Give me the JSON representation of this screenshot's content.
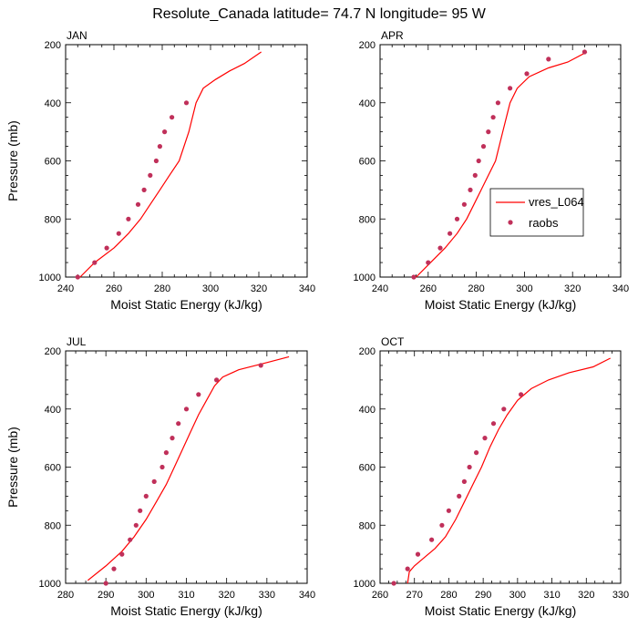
{
  "title": "Resolute_Canada  latitude= 74.7 N longitude= 95 W",
  "colors": {
    "model_line": "#ff0000",
    "obs_marker": "#c0305a",
    "axis": "#000000"
  },
  "legend": {
    "placement": "right of panel APR",
    "model_label": "vres_L064",
    "obs_label": "raobs"
  },
  "chart_data": [
    {
      "type": "line",
      "panel": "JAN",
      "title": "JAN",
      "xlabel": "Moist Static Energy (kJ/kg)",
      "ylabel": "Pressure (mb)",
      "xlim": [
        240,
        340
      ],
      "ylim": [
        1000,
        200
      ],
      "xticks": [
        "240",
        "260",
        "280",
        "300",
        "320",
        "340"
      ],
      "yticks": [
        "200",
        "400",
        "600",
        "800",
        "1000"
      ],
      "series": [
        {
          "name": "vres_L064",
          "kind": "line",
          "x": [
            246,
            252,
            260,
            266,
            271,
            275,
            279,
            283,
            287,
            291,
            294,
            297,
            302,
            308,
            314,
            321
          ],
          "y": [
            1000,
            950,
            900,
            850,
            800,
            750,
            700,
            650,
            600,
            500,
            400,
            350,
            320,
            290,
            265,
            225
          ]
        },
        {
          "name": "raobs",
          "kind": "scatter",
          "x": [
            245,
            252,
            257,
            262,
            266,
            270,
            272.5,
            275,
            277.5,
            279,
            281,
            284,
            290
          ],
          "y": [
            1000,
            950,
            900,
            850,
            800,
            750,
            700,
            650,
            600,
            550,
            500,
            450,
            400
          ]
        }
      ]
    },
    {
      "type": "line",
      "panel": "APR",
      "title": "APR",
      "xlabel": "Moist Static Energy (kJ/kg)",
      "ylabel": "",
      "xlim": [
        240,
        340
      ],
      "ylim": [
        1000,
        200
      ],
      "xticks": [
        "240",
        "260",
        "280",
        "300",
        "320",
        "340"
      ],
      "yticks": [
        "200",
        "400",
        "600",
        "800",
        "1000"
      ],
      "series": [
        {
          "name": "vres_L064",
          "kind": "line",
          "x": [
            255,
            261,
            267,
            272,
            276,
            279,
            282,
            285,
            288,
            291,
            294,
            297,
            302,
            310,
            318,
            326
          ],
          "y": [
            1000,
            950,
            900,
            850,
            800,
            750,
            700,
            650,
            600,
            500,
            400,
            350,
            310,
            280,
            260,
            225
          ]
        },
        {
          "name": "raobs",
          "kind": "scatter",
          "x": [
            254,
            260,
            265,
            269,
            272,
            275,
            277.5,
            279.5,
            281,
            283,
            285,
            287,
            289,
            294,
            301,
            310,
            325
          ],
          "y": [
            1000,
            950,
            900,
            850,
            800,
            750,
            700,
            650,
            600,
            550,
            500,
            450,
            400,
            350,
            300,
            250,
            225
          ]
        }
      ]
    },
    {
      "type": "line",
      "panel": "JUL",
      "title": "JUL",
      "xlabel": "Moist Static Energy (kJ/kg)",
      "ylabel": "Pressure (mb)",
      "xlim": [
        280,
        340
      ],
      "ylim": [
        1000,
        200
      ],
      "xticks": [
        "280",
        "290",
        "300",
        "310",
        "320",
        "330",
        "340"
      ],
      "yticks": [
        "200",
        "400",
        "600",
        "800",
        "1000"
      ],
      "series": [
        {
          "name": "vres_L064",
          "kind": "line",
          "x": [
            285.5,
            290,
            294,
            297,
            300,
            302.5,
            305,
            307,
            309,
            311,
            313,
            315,
            317,
            319,
            323,
            330,
            335.5
          ],
          "y": [
            990,
            940,
            890,
            840,
            780,
            720,
            660,
            600,
            540,
            480,
            420,
            370,
            320,
            290,
            265,
            240,
            220
          ]
        },
        {
          "name": "raobs",
          "kind": "scatter",
          "x": [
            290,
            292,
            294,
            296,
            297.5,
            298.5,
            300,
            302,
            304,
            305,
            306.5,
            308,
            310,
            313,
            317.5,
            328.5
          ],
          "y": [
            1000,
            950,
            900,
            850,
            800,
            750,
            700,
            650,
            600,
            550,
            500,
            450,
            400,
            350,
            300,
            250
          ]
        }
      ]
    },
    {
      "type": "line",
      "panel": "OCT",
      "title": "OCT",
      "xlabel": "Moist Static Energy (kJ/kg)",
      "ylabel": "",
      "xlim": [
        260,
        330
      ],
      "ylim": [
        1000,
        200
      ],
      "xticks": [
        "260",
        "270",
        "280",
        "290",
        "300",
        "310",
        "320",
        "330"
      ],
      "yticks": [
        "200",
        "400",
        "600",
        "800",
        "1000"
      ],
      "series": [
        {
          "name": "vres_L064",
          "kind": "line",
          "x": [
            268,
            268.5,
            270,
            273,
            276,
            279,
            282,
            284.5,
            287,
            289.5,
            292,
            294.5,
            297,
            300,
            304,
            309,
            315,
            322,
            327
          ],
          "y": [
            1000,
            960,
            940,
            910,
            880,
            840,
            780,
            720,
            660,
            600,
            530,
            470,
            420,
            370,
            330,
            300,
            275,
            255,
            225
          ]
        },
        {
          "name": "raobs",
          "kind": "scatter",
          "x": [
            264,
            268,
            271,
            275,
            278,
            280,
            283,
            284.5,
            286,
            288,
            290.5,
            293,
            296,
            301
          ],
          "y": [
            1000,
            950,
            900,
            850,
            800,
            750,
            700,
            650,
            600,
            550,
            500,
            450,
            400,
            350
          ]
        }
      ]
    }
  ]
}
